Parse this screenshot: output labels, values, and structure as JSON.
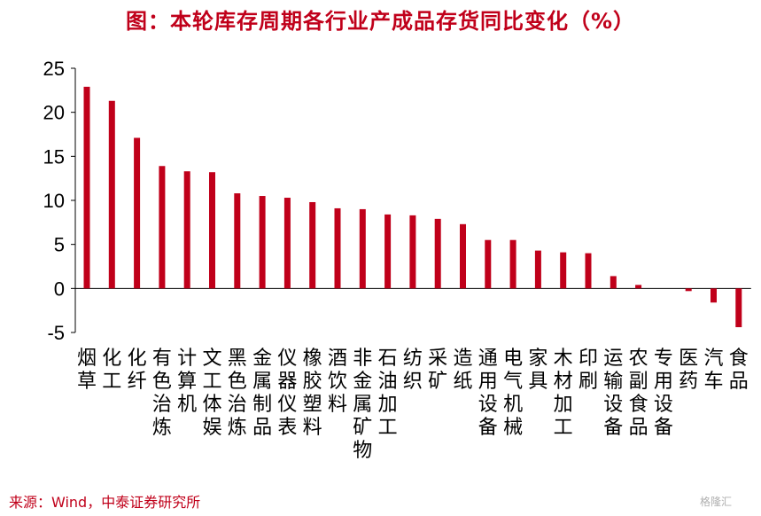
{
  "title": "图：本轮库存周期各行业产成品存货同比变化（%）",
  "source": "来源：Wind，中泰证券研究所",
  "watermark": "格隆汇",
  "colors": {
    "bar": "#c0001a",
    "axis": "#000000",
    "title": "#c0001a"
  },
  "chart_data": {
    "type": "bar",
    "categories": [
      "烟草",
      "化工",
      "化纤",
      "有色治炼",
      "计算机",
      "文工体娱",
      "黑色治炼",
      "金属制品",
      "仪器仪表",
      "橡胶塑料",
      "酒饮料",
      "非金属矿物",
      "石油加工",
      "纺织",
      "采矿",
      "造纸",
      "通用设备",
      "电气机械",
      "家具",
      "木材加工",
      "印刷",
      "运输设备",
      "农副食品",
      "专用设备",
      "医药",
      "汽车",
      "食品"
    ],
    "values": [
      22.9,
      21.3,
      17.1,
      13.9,
      13.3,
      13.2,
      10.8,
      10.5,
      10.3,
      9.8,
      9.1,
      9.0,
      8.4,
      8.3,
      7.9,
      7.3,
      5.5,
      5.5,
      4.3,
      4.1,
      4.0,
      1.4,
      0.4,
      0.0,
      -0.3,
      -1.6,
      -4.4
    ],
    "ylim": [
      -5,
      25
    ],
    "yticks": [
      -5,
      0,
      5,
      10,
      15,
      20,
      25
    ],
    "grid": false,
    "legend": "none"
  }
}
